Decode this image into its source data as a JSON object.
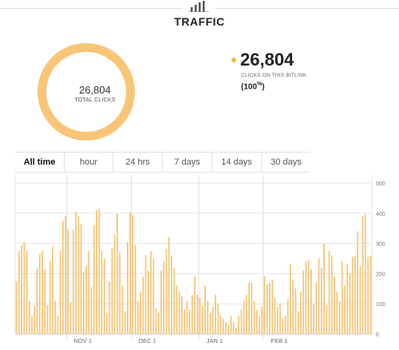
{
  "header": {
    "title": "TRAFFIC",
    "icon": "bar-chart-icon"
  },
  "summary": {
    "total_clicks": "26,804",
    "total_clicks_label": "TOTAL CLICKS",
    "ring_color": "#f8c578",
    "clicks_value": "26,804",
    "clicks_label": "CLICKS ON THIS BITLINK",
    "percent_text": "(100",
    "percent_sign": "%",
    "percent_close": ")"
  },
  "tabs": [
    {
      "label": "All time",
      "active": true
    },
    {
      "label": "hour"
    },
    {
      "label": "24 hrs"
    },
    {
      "label": "7 days"
    },
    {
      "label": "14 days"
    },
    {
      "label": "30 days"
    }
  ],
  "chart_data": {
    "type": "bar",
    "bar_color": "#f8c578",
    "ylim": [
      0,
      500
    ],
    "yticks": [
      "0",
      "100",
      "200",
      "300",
      "400",
      "500"
    ],
    "x_labels": [
      {
        "label": "NOV 1",
        "index": 20
      },
      {
        "label": "DEC 1",
        "index": 45
      },
      {
        "label": "JAN 1",
        "index": 71
      },
      {
        "label": "FEB 1",
        "index": 96
      }
    ],
    "values": [
      175,
      275,
      295,
      305,
      275,
      110,
      60,
      95,
      215,
      265,
      275,
      215,
      95,
      240,
      290,
      110,
      60,
      275,
      375,
      390,
      345,
      105,
      345,
      405,
      390,
      365,
      205,
      225,
      275,
      155,
      360,
      410,
      415,
      275,
      250,
      70,
      175,
      285,
      330,
      400,
      270,
      160,
      75,
      305,
      405,
      395,
      295,
      110,
      140,
      190,
      260,
      210,
      275,
      250,
      85,
      70,
      210,
      240,
      280,
      320,
      260,
      220,
      160,
      140,
      125,
      80,
      110,
      80,
      130,
      190,
      130,
      120,
      95,
      160,
      110,
      70,
      90,
      130,
      100,
      60,
      50,
      40,
      30,
      60,
      40,
      20,
      60,
      80,
      110,
      130,
      170,
      170,
      110,
      80,
      60,
      90,
      190,
      165,
      170,
      180,
      120,
      90,
      100,
      50,
      60,
      115,
      230,
      180,
      150,
      75,
      140,
      210,
      240,
      245,
      215,
      100,
      170,
      250,
      220,
      300,
      95,
      275,
      260,
      190,
      140,
      110,
      240,
      160,
      230,
      200,
      255,
      260,
      340,
      225,
      390,
      395,
      255,
      260
    ]
  }
}
